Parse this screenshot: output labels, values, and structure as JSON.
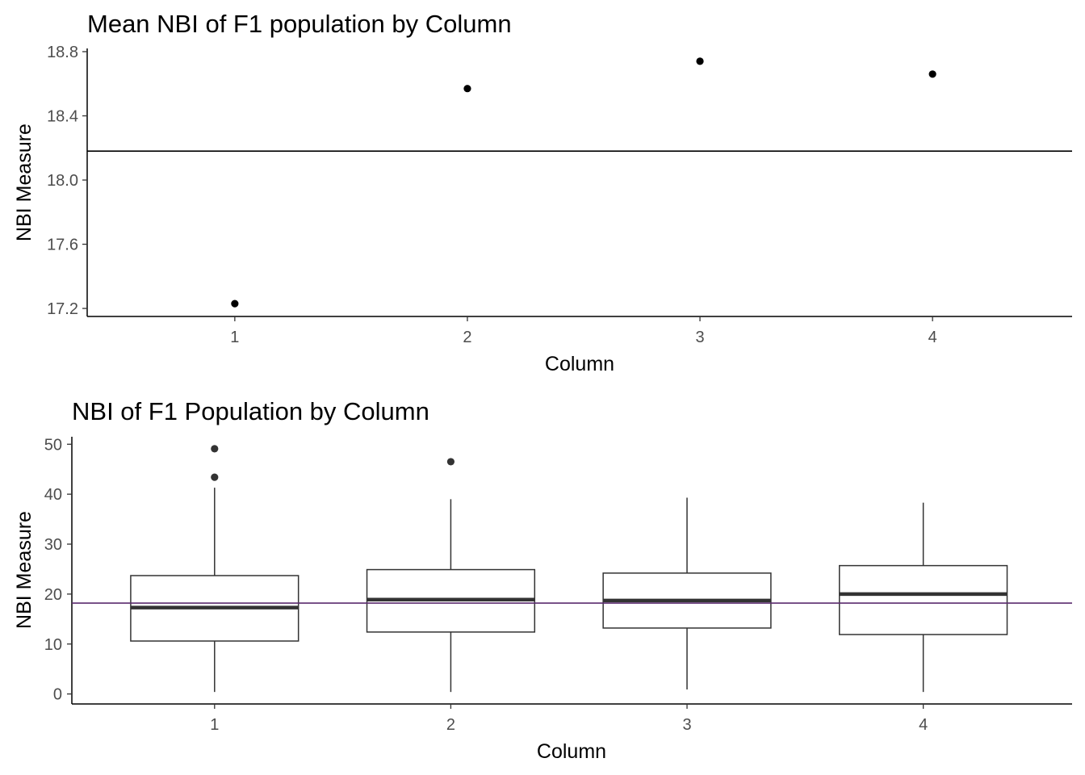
{
  "chart_data": [
    {
      "type": "scatter",
      "title": "Mean NBI of F1 population by Column",
      "xlabel": "Column",
      "ylabel": "NBI Measure",
      "categories": [
        "1",
        "2",
        "3",
        "4"
      ],
      "values": [
        17.23,
        18.57,
        18.74,
        18.66
      ],
      "reference_line": 18.18,
      "ylim": [
        17.15,
        18.82
      ],
      "yticks": [
        17.2,
        17.6,
        18.0,
        18.4,
        18.8
      ],
      "ytick_labels": [
        "17.2",
        "17.6",
        "18.0",
        "18.4",
        "18.8"
      ],
      "grid": false,
      "point_color": "#000000",
      "line_color": "#000000"
    },
    {
      "type": "box",
      "title": "NBI of F1 Population by Column",
      "xlabel": "Column",
      "ylabel": "NBI Measure",
      "categories": [
        "1",
        "2",
        "3",
        "4"
      ],
      "boxes": [
        {
          "min": 0.4,
          "q1": 10.6,
          "median": 17.3,
          "q3": 23.7,
          "max": 41.3,
          "outliers": [
            49.1,
            43.4
          ]
        },
        {
          "min": 0.4,
          "q1": 12.4,
          "median": 18.9,
          "q3": 24.9,
          "max": 39.0,
          "outliers": [
            46.5
          ]
        },
        {
          "min": 0.9,
          "q1": 13.2,
          "median": 18.7,
          "q3": 24.2,
          "max": 39.3,
          "outliers": []
        },
        {
          "min": 0.4,
          "q1": 11.9,
          "median": 20.0,
          "q3": 25.7,
          "max": 38.3,
          "outliers": []
        }
      ],
      "reference_line": 18.2,
      "ylim": [
        -2,
        51.5
      ],
      "yticks": [
        0,
        10,
        20,
        30,
        40,
        50
      ],
      "ytick_labels": [
        "0",
        "10",
        "20",
        "30",
        "40",
        "50"
      ],
      "grid": false,
      "box_color": "#333333",
      "line_color": "#5b2c6f"
    }
  ]
}
